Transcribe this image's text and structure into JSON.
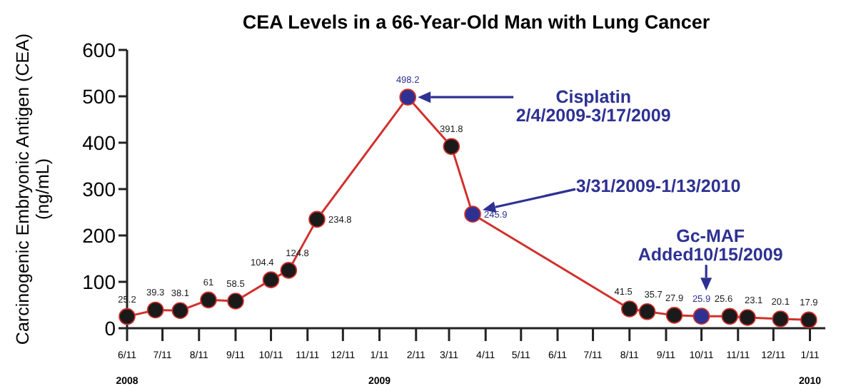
{
  "chart_data": {
    "type": "line",
    "title": "CEA Levels in a 66-Year-Old Man with Lung Cancer",
    "ylabel": "Carcinogenic Embryonic Antigen (CEA)\n(ng/mL)",
    "x": [
      "2008-06-11",
      "2008-07-05",
      "2008-07-26",
      "2008-08-19",
      "2008-09-11",
      "2008-10-11",
      "2008-10-26",
      "2008-11-19",
      "2009-02-04",
      "2009-03-13",
      "2009-03-31",
      "2009-08-11",
      "2009-08-26",
      "2009-09-18",
      "2009-10-11",
      "2009-11-04",
      "2009-11-19",
      "2009-12-17",
      "2010-01-10"
    ],
    "series": [
      {
        "color": "#d0312d",
        "values": [
          25.2,
          39.3,
          38.1,
          61,
          58.5,
          104.4,
          124.8,
          234.8,
          498.2,
          391.8,
          245.9,
          41.5,
          35.7,
          27.9,
          25.9,
          25.6,
          23.1,
          20.1,
          17.9
        ],
        "colors": [
          "#1a1a1a",
          "#1a1a1a",
          "#1a1a1a",
          "#1a1a1a",
          "#1a1a1a",
          "#1a1a1a",
          "#1a1a1a",
          "#1a1a1a",
          "#2e3192",
          "#1a1a1a",
          "#2e3192",
          "#1a1a1a",
          "#1a1a1a",
          "#1a1a1a",
          "#2e3192",
          "#1a1a1a",
          "#1a1a1a",
          "#1a1a1a",
          "#1a1a1a"
        ]
      }
    ],
    "marker": "circle",
    "data_labels": true,
    "ylim": [
      0,
      600
    ],
    "yticks": [
      0,
      100,
      200,
      300,
      400,
      500,
      600
    ],
    "xlim": [
      "2008-06-11",
      "2010-01-24"
    ],
    "xticks": [
      {
        "value": "2008-06-11",
        "label": "6/11"
      },
      {
        "value": "2008-07-11",
        "label": "7/11"
      },
      {
        "value": "2008-08-11",
        "label": "8/11"
      },
      {
        "value": "2008-09-11",
        "label": "9/11"
      },
      {
        "value": "2008-10-11",
        "label": "10/11"
      },
      {
        "value": "2008-11-11",
        "label": "11/11"
      },
      {
        "value": "2008-12-11",
        "label": "12/11"
      },
      {
        "value": "2009-01-11",
        "label": "1/11"
      },
      {
        "value": "2009-02-11",
        "label": "2/11"
      },
      {
        "value": "2009-03-11",
        "label": "3/11"
      },
      {
        "value": "2009-04-11",
        "label": "4/11"
      },
      {
        "value": "2009-05-11",
        "label": "5/11"
      },
      {
        "value": "2009-06-11",
        "label": "6/11"
      },
      {
        "value": "2009-07-11",
        "label": "7/11"
      },
      {
        "value": "2009-08-11",
        "label": "8/11"
      },
      {
        "value": "2009-09-11",
        "label": "9/11"
      },
      {
        "value": "2009-10-11",
        "label": "10/11"
      },
      {
        "value": "2009-11-11",
        "label": "11/11"
      },
      {
        "value": "2009-12-11",
        "label": "12/11"
      },
      {
        "value": "2010-01-11",
        "label": "1/11"
      }
    ],
    "annotations": [
      "Cisplatin\n2/4/2009-3/17/2009",
      "3/31/2009-1/13/2010",
      {
        "text": "Gc-MAF\nAdded10/15/2009",
        "x": "2009-10-15",
        "y": 25.9
      },
      "2008",
      "2009",
      "2010"
    ],
    "grid": false
  }
}
